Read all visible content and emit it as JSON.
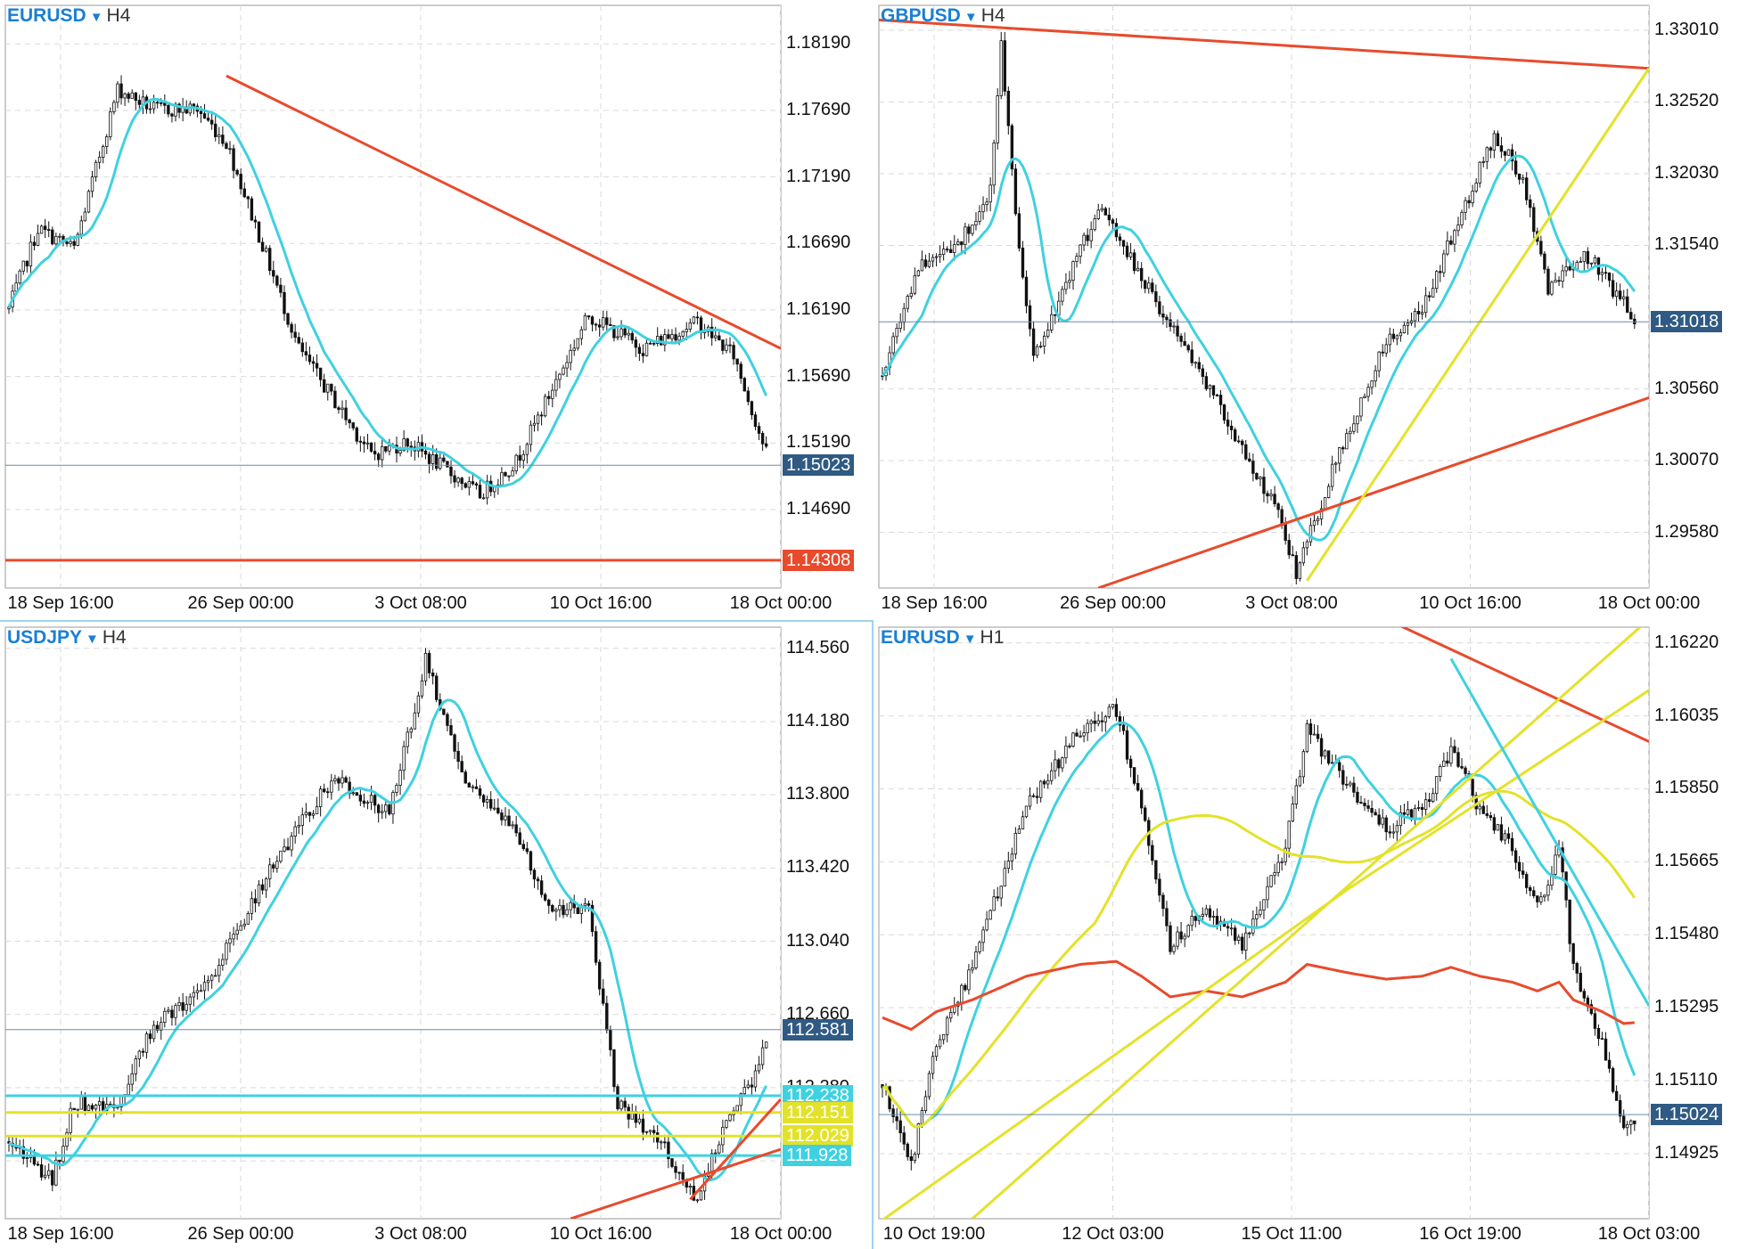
{
  "panels": [
    {
      "id": "eurusd-h4",
      "symbol": "EURUSD",
      "timeframe": "H4",
      "active": false,
      "y_ticks": [
        "1.18190",
        "1.17690",
        "1.17190",
        "1.16690",
        "1.16190",
        "1.15690",
        "1.15190",
        "1.14690"
      ],
      "x_ticks": [
        "18 Sep 16:00",
        "26 Sep 00:00",
        "3 Oct 08:00",
        "10 Oct 16:00",
        "18 Oct 00:00"
      ],
      "price_tags": [
        {
          "label": "1.15023",
          "bg": "#2f5a84",
          "fg": "#ffffff"
        },
        {
          "label": "1.14308",
          "bg": "#e84a2c",
          "fg": "#ffffff"
        }
      ],
      "y_range": [
        1.141,
        1.1848
      ],
      "candles_start": 1.162,
      "waypoints": [
        [
          0,
          1.162
        ],
        [
          8,
          1.168
        ],
        [
          18,
          1.1665
        ],
        [
          30,
          1.1785
        ],
        [
          40,
          1.177
        ],
        [
          52,
          1.177
        ],
        [
          60,
          1.1745
        ],
        [
          80,
          1.159
        ],
        [
          100,
          1.151
        ],
        [
          110,
          1.152
        ],
        [
          125,
          1.149
        ],
        [
          130,
          1.148
        ],
        [
          140,
          1.1505
        ],
        [
          160,
          1.1615
        ],
        [
          175,
          1.159
        ],
        [
          190,
          1.161
        ],
        [
          200,
          1.1585
        ],
        [
          210,
          1.1503
        ]
      ],
      "overlay_lines": [
        {
          "color": "#e84a2c",
          "pts": [
            [
              60,
              1.1795
            ],
            [
              1000000000.0,
              1.159
            ]
          ]
        },
        {
          "color": "#e84a2c",
          "pts": [
            [
              -1000000000.0,
              1.14308
            ],
            [
              1000000000.0,
              1.14308
            ]
          ]
        },
        {
          "color": "#6b8aa8",
          "pts": [
            [
              -1000000000.0,
              1.15023
            ],
            [
              1000000000.0,
              1.15023
            ]
          ],
          "thin": true
        }
      ],
      "ma": [
        {
          "period": 12,
          "color": "#3fd1e0"
        }
      ]
    },
    {
      "id": "gbpusd-h4",
      "symbol": "GBPUSD",
      "timeframe": "H4",
      "active": false,
      "y_ticks": [
        "1.33010",
        "1.32520",
        "1.32030",
        "1.31540",
        "1.30560",
        "1.30070",
        "1.29580"
      ],
      "x_ticks": [
        "18 Sep 16:00",
        "26 Sep 00:00",
        "3 Oct 08:00",
        "10 Oct 16:00",
        "18 Oct 00:00"
      ],
      "price_tags": [
        {
          "label": "1.31018",
          "bg": "#2f5a84",
          "fg": "#ffffff"
        }
      ],
      "y_range": [
        1.292,
        1.3318
      ],
      "candles_start": 1.3065,
      "waypoints": [
        [
          0,
          1.3065
        ],
        [
          10,
          1.314
        ],
        [
          20,
          1.315
        ],
        [
          30,
          1.319
        ],
        [
          33,
          1.329
        ],
        [
          38,
          1.315
        ],
        [
          42,
          1.308
        ],
        [
          50,
          1.312
        ],
        [
          60,
          1.318
        ],
        [
          75,
          1.312
        ],
        [
          90,
          1.306
        ],
        [
          110,
          1.297
        ],
        [
          115,
          1.293
        ],
        [
          125,
          1.3
        ],
        [
          140,
          1.309
        ],
        [
          150,
          1.311
        ],
        [
          160,
          1.317
        ],
        [
          170,
          1.323
        ],
        [
          178,
          1.32
        ],
        [
          185,
          1.3125
        ],
        [
          195,
          1.315
        ],
        [
          210,
          1.3102
        ]
      ],
      "overlay_lines": [
        {
          "color": "#e84a2c",
          "pts": [
            [
              -1000000000.0,
              1.3308
            ],
            [
              1000000000.0,
              1.3275
            ]
          ]
        },
        {
          "color": "#e84a2c",
          "pts": [
            [
              60,
              1.292
            ],
            [
              1000000000.0,
              1.305
            ]
          ]
        },
        {
          "color": "#e3e22a",
          "pts": [
            [
              118,
              1.2925
            ],
            [
              1000000000.0,
              1.3275
            ]
          ]
        },
        {
          "color": "#6b8aa8",
          "pts": [
            [
              -1000000000.0,
              1.31018
            ],
            [
              1000000000.0,
              1.31018
            ]
          ],
          "thin": true
        }
      ],
      "ma": [
        {
          "period": 12,
          "color": "#3fd1e0"
        }
      ]
    },
    {
      "id": "usdjpy-h4",
      "symbol": "USDJPY",
      "timeframe": "H4",
      "active": true,
      "y_ticks": [
        "114.560",
        "114.180",
        "113.800",
        "113.420",
        "113.040",
        "112.660",
        "112.280",
        "111.900"
      ],
      "x_ticks": [
        "18 Sep 16:00",
        "26 Sep 00:00",
        "3 Oct 08:00",
        "10 Oct 16:00",
        "18 Oct 00:00"
      ],
      "price_tags": [
        {
          "label": "112.581",
          "bg": "#2f5a84",
          "fg": "#ffffff"
        },
        {
          "label": "112.238",
          "bg": "#3fd1e0",
          "fg": "#ffffff"
        },
        {
          "label": "112.151",
          "bg": "#e3e22a",
          "fg": "#ffffff"
        },
        {
          "label": "112.029",
          "bg": "#e3e22a",
          "fg": "#ffffff"
        },
        {
          "label": "111.928",
          "bg": "#3fd1e0",
          "fg": "#ffffff"
        }
      ],
      "y_range": [
        111.6,
        114.67
      ],
      "candles_start": 112.0,
      "waypoints": [
        [
          0,
          112.0
        ],
        [
          12,
          111.8
        ],
        [
          18,
          112.2
        ],
        [
          30,
          112.2
        ],
        [
          40,
          112.6
        ],
        [
          55,
          112.8
        ],
        [
          60,
          113.0
        ],
        [
          75,
          113.5
        ],
        [
          90,
          113.9
        ],
        [
          105,
          113.7
        ],
        [
          115,
          114.5
        ],
        [
          125,
          113.9
        ],
        [
          140,
          113.6
        ],
        [
          150,
          113.2
        ],
        [
          160,
          113.2
        ],
        [
          168,
          112.2
        ],
        [
          180,
          112.0
        ],
        [
          190,
          111.7
        ],
        [
          198,
          112.1
        ],
        [
          205,
          112.3
        ],
        [
          210,
          112.58
        ]
      ],
      "overlay_lines": [
        {
          "color": "#3fd1e0",
          "pts": [
            [
              -1000000000.0,
              112.238
            ],
            [
              1000000000.0,
              112.238
            ]
          ],
          "w": 3
        },
        {
          "color": "#e3e22a",
          "pts": [
            [
              -1000000000.0,
              112.151
            ],
            [
              1000000000.0,
              112.151
            ]
          ],
          "w": 3
        },
        {
          "color": "#e3e22a",
          "pts": [
            [
              -1000000000.0,
              112.029
            ],
            [
              1000000000.0,
              112.029
            ]
          ],
          "w": 3
        },
        {
          "color": "#3fd1e0",
          "pts": [
            [
              -1000000000.0,
              111.928
            ],
            [
              1000000000.0,
              111.928
            ]
          ],
          "w": 3
        },
        {
          "color": "#e84a2c",
          "pts": [
            [
              155,
              111.6
            ],
            [
              1000000000.0,
              111.96
            ]
          ]
        },
        {
          "color": "#e84a2c",
          "pts": [
            [
              188,
              111.7
            ],
            [
              1000000000.0,
              112.22
            ]
          ]
        },
        {
          "color": "#6b8aa8",
          "pts": [
            [
              -1000000000.0,
              112.581
            ],
            [
              1000000000.0,
              112.581
            ]
          ],
          "thin": true
        }
      ],
      "ma": [
        {
          "period": 12,
          "color": "#3fd1e0"
        }
      ]
    },
    {
      "id": "eurusd-h1",
      "symbol": "EURUSD",
      "timeframe": "H1",
      "active": false,
      "y_ticks": [
        "1.16220",
        "1.16035",
        "1.15850",
        "1.15665",
        "1.15480",
        "1.15295",
        "1.15110",
        "1.14925"
      ],
      "x_ticks": [
        "10 Oct 19:00",
        "12 Oct 03:00",
        "15 Oct 11:00",
        "16 Oct 19:00",
        "18 Oct 03:00"
      ],
      "price_tags": [
        {
          "label": "1.15024",
          "bg": "#2f5a84",
          "fg": "#ffffff"
        }
      ],
      "y_range": [
        1.1476,
        1.1626
      ],
      "candles_start": 1.151,
      "waypoints": [
        [
          0,
          1.151
        ],
        [
          8,
          1.149
        ],
        [
          15,
          1.152
        ],
        [
          25,
          1.154
        ],
        [
          40,
          1.158
        ],
        [
          55,
          1.16
        ],
        [
          65,
          1.1605
        ],
        [
          72,
          1.158
        ],
        [
          80,
          1.1545
        ],
        [
          90,
          1.1555
        ],
        [
          100,
          1.1545
        ],
        [
          112,
          1.157
        ],
        [
          118,
          1.16
        ],
        [
          130,
          1.1585
        ],
        [
          140,
          1.1575
        ],
        [
          150,
          1.158
        ],
        [
          158,
          1.1595
        ],
        [
          166,
          1.158
        ],
        [
          175,
          1.157
        ],
        [
          182,
          1.1555
        ],
        [
          188,
          1.157
        ],
        [
          192,
          1.154
        ],
        [
          200,
          1.152
        ],
        [
          206,
          1.15
        ],
        [
          210,
          1.1502
        ]
      ],
      "overlay_lines": [
        {
          "color": "#e84a2c",
          "pts": [
            [
              140,
              1.1628
            ],
            [
              1000000000.0,
              1.1597
            ]
          ]
        },
        {
          "color": "#e3e22a",
          "pts": [
            [
              25,
              1.1476
            ],
            [
              1000000000.0,
              1.1628
            ]
          ]
        },
        {
          "color": "#e3e22a",
          "pts": [
            [
              -1000000000.0,
              1.1475
            ],
            [
              130,
              1.156
            ],
            [
              1000000000.0,
              1.161
            ]
          ]
        },
        {
          "color": "#3fd1e0",
          "pts": [
            [
              158,
              1.1618
            ],
            [
              1000000000.0,
              1.153
            ]
          ],
          "w": 3
        },
        {
          "color": "#6b8aa8",
          "pts": [
            [
              -1000000000.0,
              1.15024
            ],
            [
              1000000000.0,
              1.15024
            ]
          ],
          "thin": true
        }
      ],
      "ma": [
        {
          "period": 14,
          "color": "#3fd1e0"
        },
        {
          "period": 60,
          "color": "#e3e22a"
        },
        {
          "period": 200,
          "color": "#e84a2c",
          "flat": 1.153
        }
      ]
    }
  ]
}
